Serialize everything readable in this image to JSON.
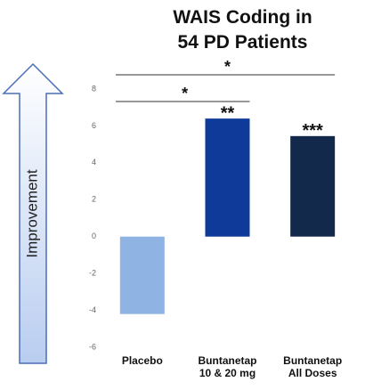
{
  "chart_data": {
    "type": "bar",
    "title": "WAIS Coding in\n54 PD Patients",
    "ylabel": "Improvement",
    "categories": [
      "Placebo",
      "Buntanetap\n10 & 20 mg",
      "Buntanetap\nAll Doses"
    ],
    "values": [
      -4.2,
      6.4,
      5.45
    ],
    "colors": [
      "#8fb4e3",
      "#0f3a9a",
      "#13294b"
    ],
    "bar_annotations": [
      null,
      "**",
      "***"
    ],
    "significance_labels": [
      "*",
      "*"
    ],
    "ylim": [
      -6,
      8
    ],
    "yticks": [
      -6,
      -4,
      -2,
      0,
      2,
      4,
      6,
      8
    ],
    "grid": false
  }
}
